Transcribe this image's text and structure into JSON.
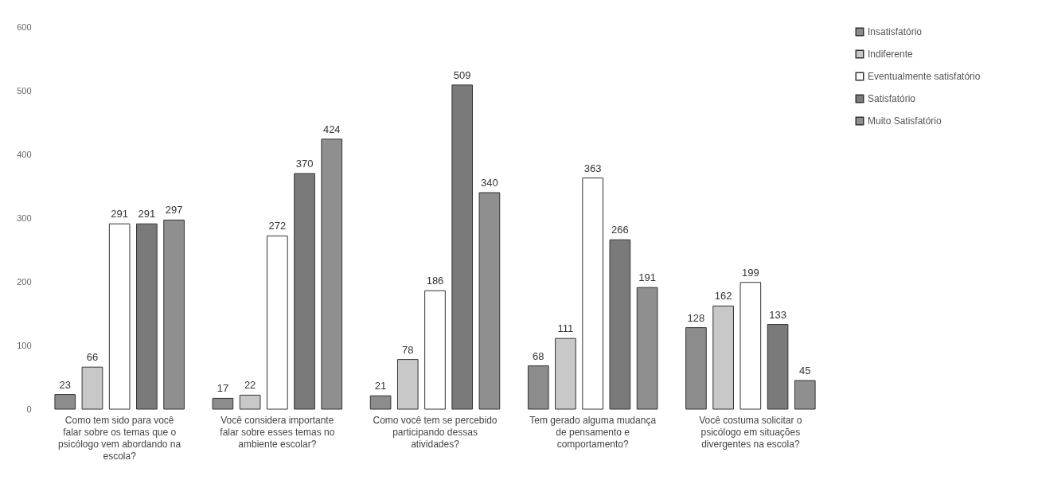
{
  "chart_data": {
    "type": "bar",
    "categories": [
      "Como tem sido para você falar sobre os temas que o psicólogo vem abordando na escola?",
      "Você considera importante falar sobre esses temas no ambiente escolar?",
      "Como você tem se percebido participando dessas atividades?",
      "Tem gerado alguma mudança de pensamento e comportamento?",
      "Você costuma solicitar o psicólogo em situações divergentes na escola?"
    ],
    "series": [
      {
        "name": "Insatisfatório",
        "color": "#8c8c8c",
        "values": [
          23,
          17,
          21,
          68,
          128
        ]
      },
      {
        "name": "Indiferente",
        "color": "#c8c8c8",
        "values": [
          66,
          22,
          78,
          111,
          162
        ]
      },
      {
        "name": "Eventualmente satisfatório",
        "color": "#ffffff",
        "values": [
          291,
          272,
          186,
          363,
          199
        ]
      },
      {
        "name": "Satisfatório",
        "color": "#7a7a7a",
        "values": [
          291,
          370,
          509,
          266,
          133
        ]
      },
      {
        "name": "Muito Satisfatório",
        "color": "#8f8f8f",
        "values": [
          297,
          424,
          340,
          191,
          45
        ]
      }
    ],
    "ylim": [
      0,
      600
    ],
    "yticks": [
      0,
      100,
      200,
      300,
      400,
      500,
      600
    ],
    "grid": false,
    "legend": "right",
    "data_labels": true
  }
}
